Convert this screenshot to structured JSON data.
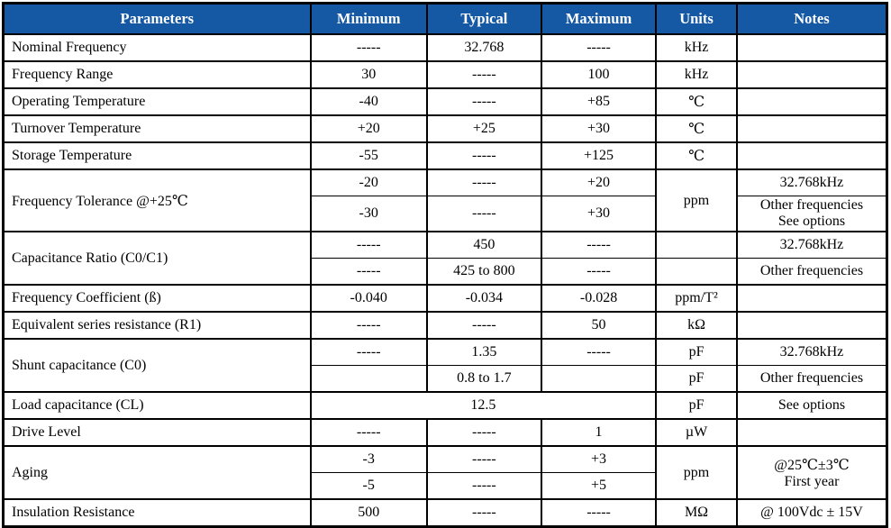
{
  "colors": {
    "header_bg": "#1559A5",
    "header_text": "#FFFFFF",
    "border": "#000000",
    "body_text": "#000000",
    "row_bg": "#FFFFFF"
  },
  "table": {
    "columns": [
      {
        "name": "col-parameters",
        "label": "Parameters"
      },
      {
        "name": "col-minimum",
        "label": "Minimum"
      },
      {
        "name": "col-typical",
        "label": "Typical"
      },
      {
        "name": "col-maximum",
        "label": "Maximum"
      },
      {
        "name": "col-units",
        "label": "Units"
      },
      {
        "name": "col-notes",
        "label": "Notes"
      }
    ],
    "rows": [
      {
        "name": "row-nominal-frequency",
        "major": true,
        "cells": [
          {
            "n": "nominal-frequency-param",
            "t": "Nominal Frequency",
            "al": "left"
          },
          {
            "n": "nominal-frequency-min",
            "t": "-----"
          },
          {
            "n": "nominal-frequency-typ",
            "t": "32.768"
          },
          {
            "n": "nominal-frequency-max",
            "t": "-----"
          },
          {
            "n": "nominal-frequency-units",
            "t": "kHz"
          },
          {
            "n": "nominal-frequency-notes",
            "t": ""
          }
        ]
      },
      {
        "name": "row-frequency-range",
        "major": true,
        "cells": [
          {
            "n": "frequency-range-param",
            "t": "Frequency Range",
            "al": "left"
          },
          {
            "n": "frequency-range-min",
            "t": "30"
          },
          {
            "n": "frequency-range-typ",
            "t": "-----"
          },
          {
            "n": "frequency-range-max",
            "t": "100"
          },
          {
            "n": "frequency-range-units",
            "t": "kHz"
          },
          {
            "n": "frequency-range-notes",
            "t": ""
          }
        ]
      },
      {
        "name": "row-operating-temperature",
        "major": true,
        "cells": [
          {
            "n": "operating-temperature-param",
            "t": "Operating Temperature",
            "al": "left"
          },
          {
            "n": "operating-temperature-min",
            "t": "-40"
          },
          {
            "n": "operating-temperature-typ",
            "t": "-----"
          },
          {
            "n": "operating-temperature-max",
            "t": "+85"
          },
          {
            "n": "operating-temperature-units",
            "t": "℃"
          },
          {
            "n": "operating-temperature-notes",
            "t": ""
          }
        ]
      },
      {
        "name": "row-turnover-temperature",
        "major": true,
        "cells": [
          {
            "n": "turnover-temperature-param",
            "t": "Turnover Temperature",
            "al": "left"
          },
          {
            "n": "turnover-temperature-min",
            "t": "+20"
          },
          {
            "n": "turnover-temperature-typ",
            "t": "+25"
          },
          {
            "n": "turnover-temperature-max",
            "t": "+30"
          },
          {
            "n": "turnover-temperature-units",
            "t": "℃"
          },
          {
            "n": "turnover-temperature-notes",
            "t": ""
          }
        ]
      },
      {
        "name": "row-storage-temperature",
        "major": true,
        "cells": [
          {
            "n": "storage-temperature-param",
            "t": "Storage Temperature",
            "al": "left"
          },
          {
            "n": "storage-temperature-min",
            "t": "-55"
          },
          {
            "n": "storage-temperature-typ",
            "t": "-----"
          },
          {
            "n": "storage-temperature-max",
            "t": "+125"
          },
          {
            "n": "storage-temperature-units",
            "t": "℃"
          },
          {
            "n": "storage-temperature-notes",
            "t": ""
          }
        ]
      },
      {
        "name": "row-frequency-tolerance-1",
        "major": true,
        "cells": [
          {
            "n": "frequency-tolerance-param",
            "t": "Frequency Tolerance @+25℃",
            "al": "left",
            "rs": 2
          },
          {
            "n": "frequency-tolerance-min-1",
            "t": "-20"
          },
          {
            "n": "frequency-tolerance-typ-1",
            "t": "-----"
          },
          {
            "n": "frequency-tolerance-max-1",
            "t": "+20"
          },
          {
            "n": "frequency-tolerance-units",
            "t": "ppm",
            "rs": 2
          },
          {
            "n": "frequency-tolerance-notes-1",
            "t": "32.768kHz"
          }
        ]
      },
      {
        "name": "row-frequency-tolerance-2",
        "major": false,
        "cells": [
          {
            "n": "frequency-tolerance-min-2",
            "t": "-30"
          },
          {
            "n": "frequency-tolerance-typ-2",
            "t": "-----"
          },
          {
            "n": "frequency-tolerance-max-2",
            "t": "+30"
          },
          {
            "n": "frequency-tolerance-notes-2",
            "t": "Other frequencies\nSee options"
          }
        ]
      },
      {
        "name": "row-capacitance-ratio-1",
        "major": true,
        "cells": [
          {
            "n": "capacitance-ratio-param",
            "t": "Capacitance Ratio (C0/C1)",
            "al": "left",
            "rs": 2
          },
          {
            "n": "capacitance-ratio-min-1",
            "t": "-----"
          },
          {
            "n": "capacitance-ratio-typ-1",
            "t": "450"
          },
          {
            "n": "capacitance-ratio-max-1",
            "t": "-----"
          },
          {
            "n": "capacitance-ratio-units-1",
            "t": ""
          },
          {
            "n": "capacitance-ratio-notes-1",
            "t": "32.768kHz"
          }
        ]
      },
      {
        "name": "row-capacitance-ratio-2",
        "major": false,
        "cells": [
          {
            "n": "capacitance-ratio-min-2",
            "t": "-----"
          },
          {
            "n": "capacitance-ratio-typ-2",
            "t": "425 to 800"
          },
          {
            "n": "capacitance-ratio-max-2",
            "t": "-----"
          },
          {
            "n": "capacitance-ratio-units-2",
            "t": ""
          },
          {
            "n": "capacitance-ratio-notes-2",
            "t": "Other frequencies"
          }
        ]
      },
      {
        "name": "row-frequency-coefficient",
        "major": true,
        "cells": [
          {
            "n": "frequency-coefficient-param",
            "t": "Frequency Coefficient (ß)",
            "al": "left"
          },
          {
            "n": "frequency-coefficient-min",
            "t": "-0.040"
          },
          {
            "n": "frequency-coefficient-typ",
            "t": "-0.034"
          },
          {
            "n": "frequency-coefficient-max",
            "t": "-0.028"
          },
          {
            "n": "frequency-coefficient-units",
            "t": "ppm/T²"
          },
          {
            "n": "frequency-coefficient-notes",
            "t": ""
          }
        ]
      },
      {
        "name": "row-esr",
        "major": true,
        "cells": [
          {
            "n": "esr-param",
            "t": "Equivalent series resistance (R1)",
            "al": "left"
          },
          {
            "n": "esr-min",
            "t": "-----"
          },
          {
            "n": "esr-typ",
            "t": "-----"
          },
          {
            "n": "esr-max",
            "t": "50"
          },
          {
            "n": "esr-units",
            "t": "kΩ"
          },
          {
            "n": "esr-notes",
            "t": ""
          }
        ]
      },
      {
        "name": "row-shunt-capacitance-1",
        "major": true,
        "cells": [
          {
            "n": "shunt-capacitance-param",
            "t": "Shunt capacitance (C0)",
            "al": "left",
            "rs": 2
          },
          {
            "n": "shunt-capacitance-min-1",
            "t": "-----"
          },
          {
            "n": "shunt-capacitance-typ-1",
            "t": "1.35"
          },
          {
            "n": "shunt-capacitance-max-1",
            "t": "-----"
          },
          {
            "n": "shunt-capacitance-units-1",
            "t": "pF"
          },
          {
            "n": "shunt-capacitance-notes-1",
            "t": "32.768kHz"
          }
        ]
      },
      {
        "name": "row-shunt-capacitance-2",
        "major": false,
        "cells": [
          {
            "n": "shunt-capacitance-min-2",
            "t": ""
          },
          {
            "n": "shunt-capacitance-typ-2",
            "t": "0.8 to 1.7"
          },
          {
            "n": "shunt-capacitance-max-2",
            "t": ""
          },
          {
            "n": "shunt-capacitance-units-2",
            "t": "pF"
          },
          {
            "n": "shunt-capacitance-notes-2",
            "t": "Other frequencies"
          }
        ]
      },
      {
        "name": "row-load-capacitance",
        "major": true,
        "cells": [
          {
            "n": "load-capacitance-param",
            "t": "Load capacitance (CL)",
            "al": "left"
          },
          {
            "n": "load-capacitance-value",
            "t": "12.5",
            "cs": 3
          },
          {
            "n": "load-capacitance-units",
            "t": "pF"
          },
          {
            "n": "load-capacitance-notes",
            "t": "See options"
          }
        ]
      },
      {
        "name": "row-drive-level",
        "major": true,
        "cells": [
          {
            "n": "drive-level-param",
            "t": "Drive Level",
            "al": "left"
          },
          {
            "n": "drive-level-min",
            "t": "-----"
          },
          {
            "n": "drive-level-typ",
            "t": "-----"
          },
          {
            "n": "drive-level-max",
            "t": "1"
          },
          {
            "n": "drive-level-units",
            "t": "µW"
          },
          {
            "n": "drive-level-notes",
            "t": ""
          }
        ]
      },
      {
        "name": "row-aging-1",
        "major": true,
        "cells": [
          {
            "n": "aging-param",
            "t": "Aging",
            "al": "left",
            "rs": 2
          },
          {
            "n": "aging-min-1",
            "t": "-3"
          },
          {
            "n": "aging-typ-1",
            "t": "-----"
          },
          {
            "n": "aging-max-1",
            "t": "+3"
          },
          {
            "n": "aging-units",
            "t": "ppm",
            "rs": 2
          },
          {
            "n": "aging-notes",
            "t": "@25℃±3℃\nFirst year",
            "rs": 2
          }
        ]
      },
      {
        "name": "row-aging-2",
        "major": false,
        "cells": [
          {
            "n": "aging-min-2",
            "t": "-5"
          },
          {
            "n": "aging-typ-2",
            "t": "-----"
          },
          {
            "n": "aging-max-2",
            "t": "+5"
          }
        ]
      },
      {
        "name": "row-insulation-resistance",
        "major": true,
        "cells": [
          {
            "n": "insulation-resistance-param",
            "t": "Insulation Resistance",
            "al": "left"
          },
          {
            "n": "insulation-resistance-min",
            "t": "500"
          },
          {
            "n": "insulation-resistance-typ",
            "t": "-----"
          },
          {
            "n": "insulation-resistance-max",
            "t": "-----"
          },
          {
            "n": "insulation-resistance-units",
            "t": "MΩ"
          },
          {
            "n": "insulation-resistance-notes",
            "t": "@ 100Vdc ± 15V"
          }
        ]
      }
    ]
  }
}
